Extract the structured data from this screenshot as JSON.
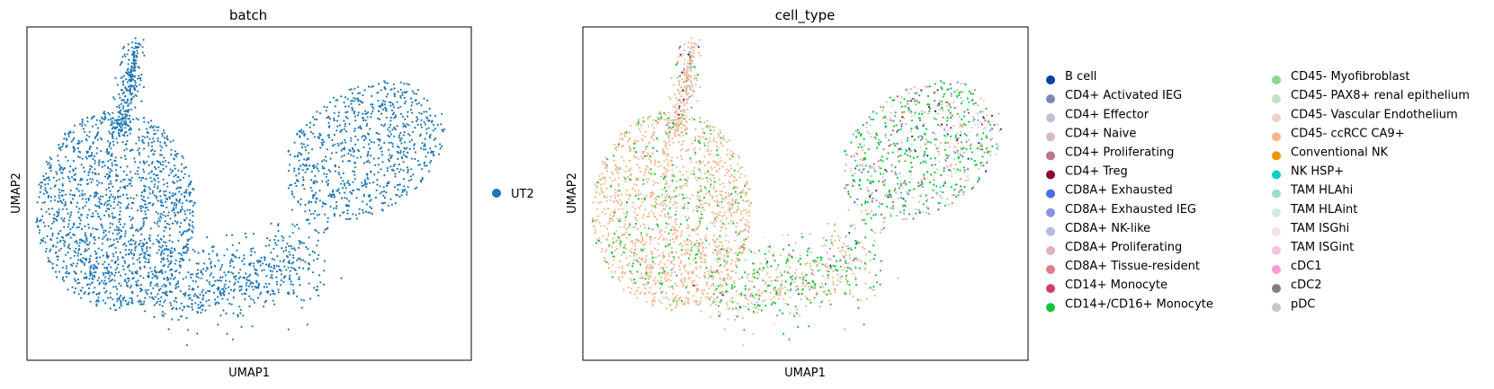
{
  "colors": {
    "batch_point": "#1f77b4",
    "frame": "#000000"
  },
  "chart_data": [
    {
      "type": "scatter",
      "title": "batch",
      "xlabel": "UMAP1",
      "ylabel": "UMAP2",
      "grid": false,
      "axis_ticks": false,
      "legend_position": "right",
      "legend": [
        {
          "label": "UT2",
          "color": "#1f77b4"
        }
      ]
    },
    {
      "type": "scatter",
      "title": "cell_type",
      "xlabel": "UMAP1",
      "ylabel": "UMAP2",
      "grid": false,
      "axis_ticks": false,
      "legend_position": "right",
      "legend": [
        {
          "label": "B cell",
          "color": "#023fa5"
        },
        {
          "label": "CD4+ Activated IEG",
          "color": "#7d87b9"
        },
        {
          "label": "CD4+ Effector",
          "color": "#bec1d4"
        },
        {
          "label": "CD4+ Naive",
          "color": "#d6bcc0"
        },
        {
          "label": "CD4+ Proliferating",
          "color": "#bb7784"
        },
        {
          "label": "CD4+ Treg",
          "color": "#8e063b"
        },
        {
          "label": "CD8A+ Exhausted",
          "color": "#4a6fe3"
        },
        {
          "label": "CD8A+ Exhausted IEG",
          "color": "#8595e1"
        },
        {
          "label": "CD8A+ NK-like",
          "color": "#b5bbe3"
        },
        {
          "label": "CD8A+ Proliferating",
          "color": "#e6afb9"
        },
        {
          "label": "CD8A+ Tissue-resident",
          "color": "#e07b91"
        },
        {
          "label": "CD14+ Monocyte",
          "color": "#d33f6a"
        },
        {
          "label": "CD14+/CD16+ Monocyte",
          "color": "#11c638"
        },
        {
          "label": "CD45- Myofibroblast",
          "color": "#8dd593"
        },
        {
          "label": "CD45- PAX8+ renal epithelium",
          "color": "#c6dec7"
        },
        {
          "label": "CD45- Vascular Endothelium",
          "color": "#ead3c6"
        },
        {
          "label": "CD45- ccRCC CA9+",
          "color": "#f0b98d"
        },
        {
          "label": "Conventional NK",
          "color": "#ef9708"
        },
        {
          "label": "NK HSP+",
          "color": "#0fcfc0"
        },
        {
          "label": "TAM HLAhi",
          "color": "#9cded6"
        },
        {
          "label": "TAM HLAint",
          "color": "#d5eae7"
        },
        {
          "label": "TAM ISGhi",
          "color": "#f3e1eb"
        },
        {
          "label": "TAM ISGint",
          "color": "#f6c4e1"
        },
        {
          "label": "cDC1",
          "color": "#f79cd4"
        },
        {
          "label": "cDC2",
          "color": "#7f7f7f"
        },
        {
          "label": "pDC",
          "color": "#c7c7c7"
        }
      ]
    }
  ]
}
